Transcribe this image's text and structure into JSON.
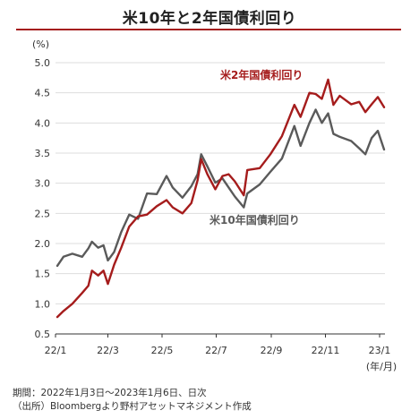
{
  "chart_data": {
    "type": "line",
    "title": "米10年と2年国債利回り",
    "ylabel": "(%)",
    "xunit_label": "(年/月)",
    "ylim": [
      0.5,
      5.0
    ],
    "yticks": [
      "5.0",
      "4.5",
      "4.0",
      "3.5",
      "3.0",
      "2.5",
      "2.0",
      "1.5",
      "1.0",
      "0.5"
    ],
    "xticks": [
      "22/1",
      "22/3",
      "22/5",
      "22/7",
      "22/9",
      "22/11",
      "23/1"
    ],
    "grid": true,
    "series": [
      {
        "name": "米2年国債利回り",
        "color": "#a51c1c",
        "points": [
          [
            "2022-01-03",
            0.78
          ],
          [
            "2022-01-10",
            0.88
          ],
          [
            "2022-01-20",
            1.0
          ],
          [
            "2022-01-31",
            1.18
          ],
          [
            "2022-02-07",
            1.3
          ],
          [
            "2022-02-11",
            1.55
          ],
          [
            "2022-02-18",
            1.47
          ],
          [
            "2022-02-24",
            1.55
          ],
          [
            "2022-03-01",
            1.33
          ],
          [
            "2022-03-08",
            1.65
          ],
          [
            "2022-03-16",
            1.93
          ],
          [
            "2022-03-25",
            2.28
          ],
          [
            "2022-04-04",
            2.45
          ],
          [
            "2022-04-14",
            2.48
          ],
          [
            "2022-04-25",
            2.62
          ],
          [
            "2022-05-06",
            2.72
          ],
          [
            "2022-05-13",
            2.6
          ],
          [
            "2022-05-24",
            2.5
          ],
          [
            "2022-06-03",
            2.67
          ],
          [
            "2022-06-10",
            3.05
          ],
          [
            "2022-06-14",
            3.4
          ],
          [
            "2022-06-21",
            3.15
          ],
          [
            "2022-06-30",
            2.9
          ],
          [
            "2022-07-08",
            3.12
          ],
          [
            "2022-07-15",
            3.15
          ],
          [
            "2022-07-22",
            3.03
          ],
          [
            "2022-08-01",
            2.8
          ],
          [
            "2022-08-05",
            3.22
          ],
          [
            "2022-08-19",
            3.25
          ],
          [
            "2022-08-31",
            3.48
          ],
          [
            "2022-09-13",
            3.78
          ],
          [
            "2022-09-27",
            4.3
          ],
          [
            "2022-10-04",
            4.1
          ],
          [
            "2022-10-14",
            4.5
          ],
          [
            "2022-10-21",
            4.48
          ],
          [
            "2022-10-28",
            4.4
          ],
          [
            "2022-11-04",
            4.72
          ],
          [
            "2022-11-10",
            4.3
          ],
          [
            "2022-11-17",
            4.45
          ],
          [
            "2022-11-30",
            4.31
          ],
          [
            "2022-12-09",
            4.35
          ],
          [
            "2022-12-16",
            4.18
          ],
          [
            "2022-12-23",
            4.31
          ],
          [
            "2022-12-30",
            4.43
          ],
          [
            "2023-01-06",
            4.26
          ]
        ]
      },
      {
        "name": "米10年国債利回り",
        "color": "#5a5a5a",
        "points": [
          [
            "2022-01-03",
            1.63
          ],
          [
            "2022-01-10",
            1.78
          ],
          [
            "2022-01-20",
            1.83
          ],
          [
            "2022-01-31",
            1.78
          ],
          [
            "2022-02-07",
            1.92
          ],
          [
            "2022-02-11",
            2.03
          ],
          [
            "2022-02-18",
            1.93
          ],
          [
            "2022-02-24",
            1.97
          ],
          [
            "2022-03-01",
            1.72
          ],
          [
            "2022-03-08",
            1.86
          ],
          [
            "2022-03-16",
            2.19
          ],
          [
            "2022-03-25",
            2.48
          ],
          [
            "2022-04-04",
            2.41
          ],
          [
            "2022-04-14",
            2.83
          ],
          [
            "2022-04-25",
            2.82
          ],
          [
            "2022-05-06",
            3.12
          ],
          [
            "2022-05-13",
            2.93
          ],
          [
            "2022-05-24",
            2.76
          ],
          [
            "2022-06-03",
            2.95
          ],
          [
            "2022-06-10",
            3.15
          ],
          [
            "2022-06-14",
            3.48
          ],
          [
            "2022-06-21",
            3.28
          ],
          [
            "2022-06-30",
            3.01
          ],
          [
            "2022-07-08",
            3.08
          ],
          [
            "2022-07-15",
            2.93
          ],
          [
            "2022-07-22",
            2.78
          ],
          [
            "2022-08-01",
            2.6
          ],
          [
            "2022-08-05",
            2.83
          ],
          [
            "2022-08-19",
            2.98
          ],
          [
            "2022-08-31",
            3.19
          ],
          [
            "2022-09-13",
            3.41
          ],
          [
            "2022-09-27",
            3.95
          ],
          [
            "2022-10-04",
            3.62
          ],
          [
            "2022-10-14",
            4.0
          ],
          [
            "2022-10-21",
            4.22
          ],
          [
            "2022-10-28",
            4.0
          ],
          [
            "2022-11-04",
            4.16
          ],
          [
            "2022-11-10",
            3.82
          ],
          [
            "2022-11-17",
            3.77
          ],
          [
            "2022-11-30",
            3.7
          ],
          [
            "2022-12-09",
            3.58
          ],
          [
            "2022-12-16",
            3.48
          ],
          [
            "2022-12-23",
            3.75
          ],
          [
            "2022-12-30",
            3.87
          ],
          [
            "2023-01-06",
            3.56
          ]
        ]
      }
    ]
  },
  "notes": {
    "period": "期間：2022年1月3日～2023年1月6日、日次",
    "source": "（出所）Bloombergより野村アセットマネジメント作成"
  }
}
